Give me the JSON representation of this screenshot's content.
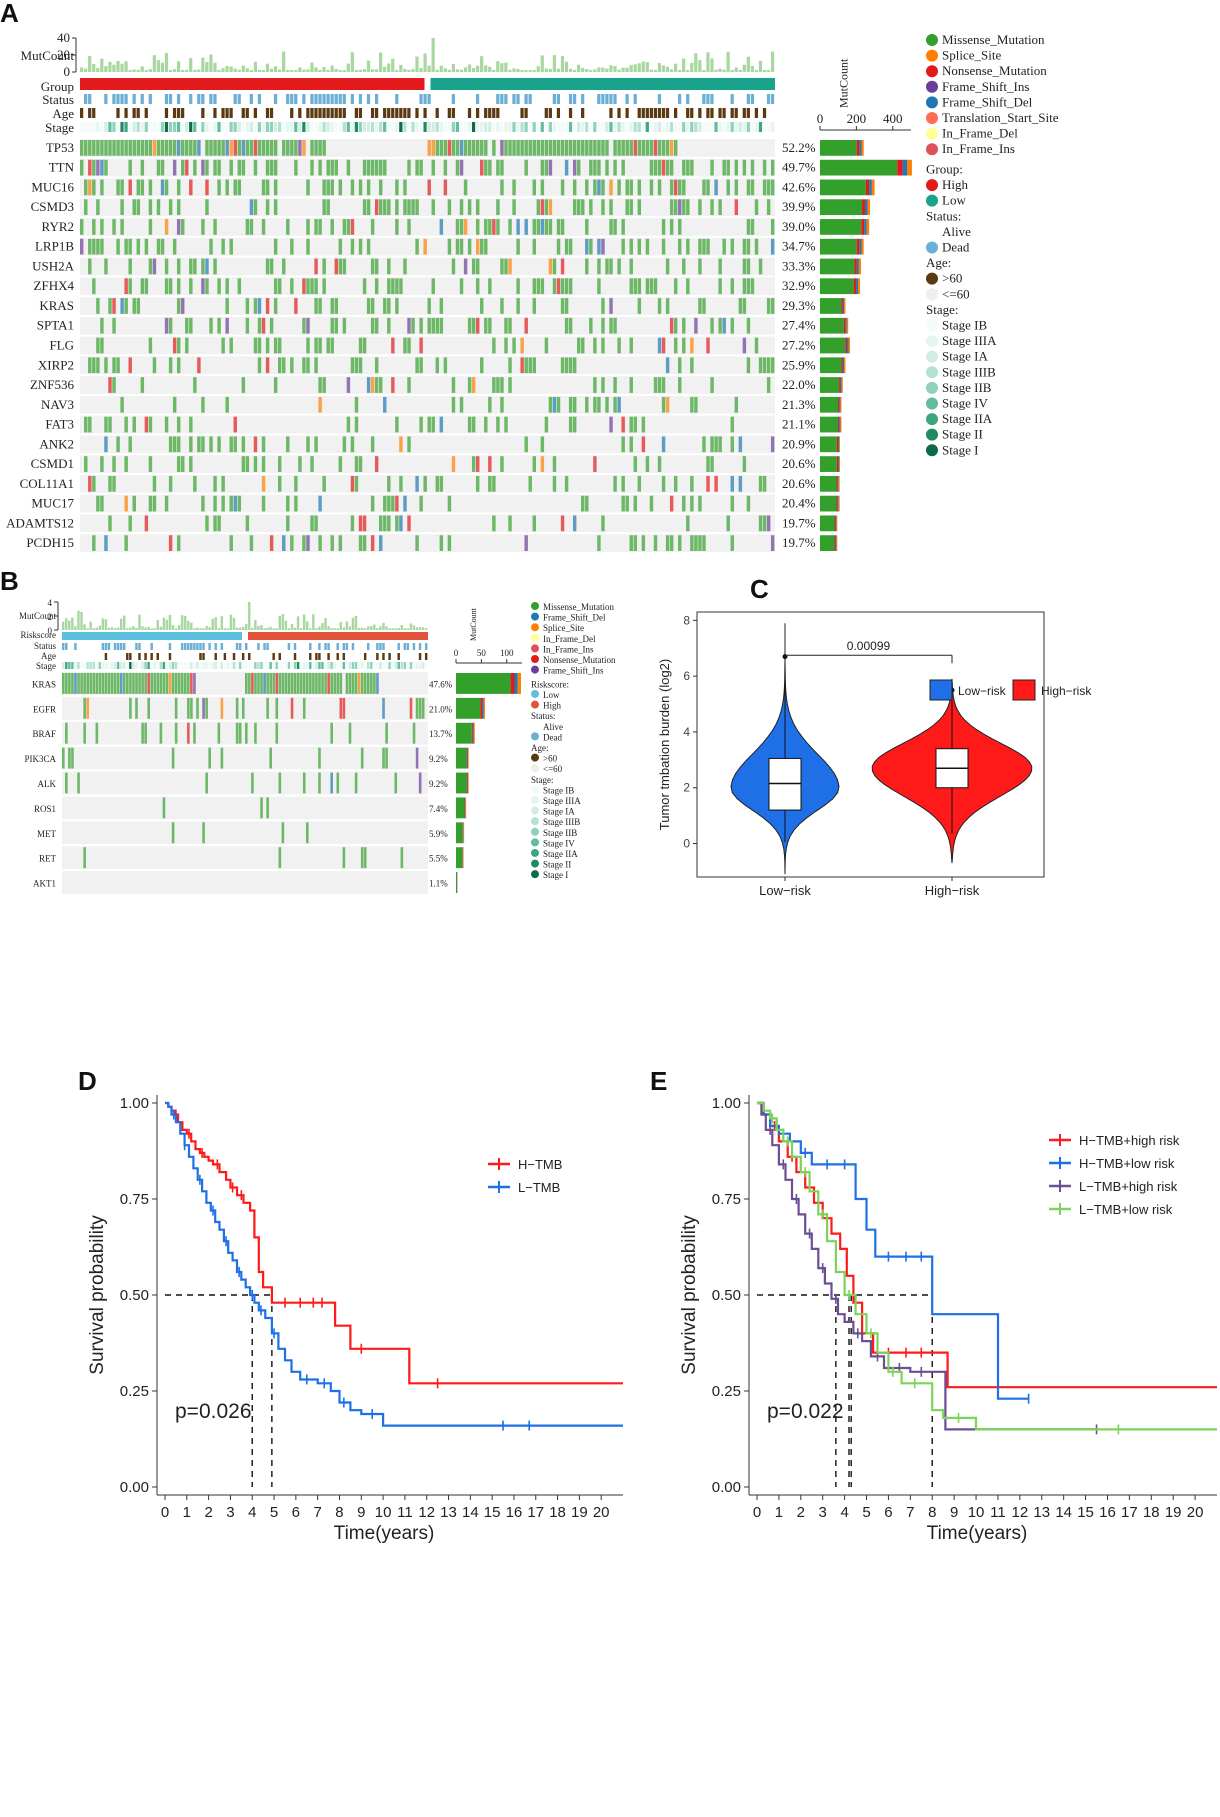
{
  "panel_labels": [
    "A",
    "B",
    "C",
    "D",
    "E"
  ],
  "colors": {
    "Missense_Mutation": "#33a02c",
    "Splice_Site": "#ff7f00",
    "Nonsense_Mutation": "#e31a1c",
    "Frame_Shift_Ins": "#6a3d9a",
    "Frame_Shift_Del": "#1f78b4",
    "Translation_Start_Site": "#ff6f4f",
    "In_Frame_Del": "#ffff99",
    "In_Frame_Ins": "#e0505a",
    "grp_high": "#e31a1c",
    "grp_low": "#1aa38c",
    "status_dead": "#6baed6",
    "age_old": "#5a3a12",
    "riskLow": "#5bc0de",
    "riskHigh": "#e2533b",
    "km_red": "#ff1a1a",
    "km_blue": "#1f6fe6",
    "km_purple": "#6b4e94",
    "km_green": "#7cd35a"
  },
  "chart_data": [
    {
      "panel": "A",
      "type": "table",
      "track_labels": [
        "MutCount",
        "Group",
        "Status",
        "Age",
        "Stage"
      ],
      "mutcount_axis": {
        "label": "MutCount",
        "ticks": [
          "0",
          "20",
          "40"
        ],
        "max": 40
      },
      "side_axis": {
        "label": "MutCount",
        "ticks": [
          "0",
          "200",
          "400"
        ],
        "max": 500
      },
      "genes": [
        "TP53",
        "TTN",
        "MUC16",
        "CSMD3",
        "RYR2",
        "LRP1B",
        "USH2A",
        "ZFHX4",
        "KRAS",
        "SPTA1",
        "FLG",
        "XIRP2",
        "ZNF536",
        "NAV3",
        "FAT3",
        "ANK2",
        "CSMD1",
        "COL11A1",
        "MUC17",
        "ADAMTS12",
        "PCDH15"
      ],
      "percents": [
        "52.2%",
        "49.7%",
        "42.6%",
        "39.9%",
        "39.0%",
        "34.7%",
        "33.3%",
        "32.9%",
        "29.3%",
        "27.4%",
        "27.2%",
        "25.9%",
        "22.0%",
        "21.3%",
        "21.1%",
        "20.9%",
        "20.6%",
        "20.6%",
        "20.4%",
        "19.7%",
        "19.7%"
      ],
      "side_totals": [
        240,
        505,
        300,
        275,
        270,
        240,
        225,
        220,
        140,
        155,
        165,
        140,
        125,
        118,
        118,
        110,
        110,
        108,
        108,
        95,
        95
      ],
      "legend_variants": [
        "Missense_Mutation",
        "Splice_Site",
        "Nonsense_Mutation",
        "Frame_Shift_Ins",
        "Frame_Shift_Del",
        "Translation_Start_Site",
        "In_Frame_Del",
        "In_Frame_Ins"
      ],
      "legend_tracks": [
        {
          "title": "Group:",
          "items": [
            "High",
            "Low"
          ]
        },
        {
          "title": "Status:",
          "items": [
            "Alive",
            "Dead"
          ]
        },
        {
          "title": "Age:",
          "items": [
            ">60",
            "<=60"
          ]
        },
        {
          "title": "Stage:",
          "items": [
            "Stage IB",
            "Stage IIIA",
            "Stage IA",
            "Stage IIIB",
            "Stage IIB",
            "Stage IV",
            "Stage IIA",
            "Stage II",
            "Stage I"
          ]
        }
      ]
    },
    {
      "panel": "B",
      "type": "table",
      "track_labels": [
        "MutCount",
        "Riskscore",
        "Status",
        "Age",
        "Stage"
      ],
      "mutcount_axis": {
        "label": "MutCount",
        "ticks": [
          "0",
          "2",
          "4"
        ],
        "max": 4
      },
      "side_axis": {
        "label": "MutCount",
        "ticks": [
          "0",
          "50",
          "100"
        ],
        "max": 130
      },
      "genes": [
        "KRAS",
        "EGFR",
        "BRAF",
        "PIK3CA",
        "ALK",
        "ROS1",
        "MET",
        "RET",
        "AKT1"
      ],
      "percents": [
        "47.6%",
        "21.0%",
        "13.7%",
        "9.2%",
        "9.2%",
        "7.4%",
        "5.9%",
        "5.5%",
        "1.1%"
      ],
      "side_totals": [
        128,
        57,
        37,
        25,
        25,
        20,
        16,
        15,
        3
      ],
      "legend_variants": [
        "Missense_Mutation",
        "Frame_Shift_Del",
        "Splice_Site",
        "In_Frame_Del",
        "In_Frame_Ins",
        "Nonsense_Mutation",
        "Frame_Shift_Ins"
      ],
      "legend_tracks": [
        {
          "title": "Riskscore:",
          "items": [
            "Low",
            "High"
          ]
        },
        {
          "title": "Status:",
          "items": [
            "Alive",
            "Dead"
          ]
        },
        {
          "title": "Age:",
          "items": [
            ">60",
            "<=60"
          ]
        },
        {
          "title": "Stage:",
          "items": [
            "Stage IB",
            "Stage IIIA",
            "Stage IA",
            "Stage IIIB",
            "Stage IIB",
            "Stage IV",
            "Stage IIA",
            "Stage II",
            "Stage I"
          ]
        }
      ]
    },
    {
      "panel": "C",
      "type": "violin",
      "legend": [
        "Low−risk",
        "High−risk"
      ],
      "categories": [
        "Low−risk",
        "High−risk"
      ],
      "ylabel": "Tumor tmbation burden (log2)",
      "ylim": [
        -1.2,
        8.3
      ],
      "yticks": [
        "0",
        "2",
        "4",
        "6",
        "8"
      ],
      "pvalue": "0.00099",
      "boxes": [
        {
          "min": 0.05,
          "q1": 1.2,
          "median": 2.15,
          "q3": 3.05,
          "max": 6.7,
          "vmin": -1.1,
          "vmax": 7.9,
          "mode": 2.0
        },
        {
          "min": 0.35,
          "q1": 2.0,
          "median": 2.7,
          "q3": 3.4,
          "max": 5.5,
          "vmin": -0.7,
          "vmax": 5.9,
          "mode": 2.7
        }
      ]
    },
    {
      "panel": "D",
      "type": "line",
      "xlabel": "Time(years)",
      "ylabel": "Survival probability",
      "xticks": [
        "0",
        "1",
        "2",
        "3",
        "4",
        "5",
        "6",
        "7",
        "8",
        "9",
        "10",
        "11",
        "12",
        "13",
        "14",
        "15",
        "16",
        "17",
        "18",
        "19",
        "20"
      ],
      "yticks": [
        "0.00",
        "0.25",
        "0.50",
        "0.75",
        "1.00"
      ],
      "xlim": [
        0,
        21
      ],
      "pvalue": "p=0.026",
      "medians": [
        4.0,
        4.9
      ],
      "series": [
        {
          "name": "H−TMB",
          "color": "#ff1a1a",
          "x": [
            0,
            0.15,
            0.3,
            0.45,
            0.6,
            0.8,
            1.0,
            1.2,
            1.4,
            1.6,
            1.8,
            2.0,
            2.2,
            2.5,
            2.8,
            3.0,
            3.3,
            3.6,
            3.9,
            4.1,
            4.3,
            4.5,
            4.9,
            7.8,
            8.5,
            11.2,
            21
          ],
          "y": [
            1.0,
            0.99,
            0.98,
            0.97,
            0.95,
            0.93,
            0.92,
            0.9,
            0.88,
            0.87,
            0.86,
            0.85,
            0.84,
            0.82,
            0.8,
            0.78,
            0.76,
            0.74,
            0.72,
            0.65,
            0.56,
            0.52,
            0.48,
            0.42,
            0.36,
            0.27,
            0.27
          ],
          "censor_x": [
            0.5,
            1.1,
            1.7,
            2.4,
            3.1,
            3.5,
            5.5,
            6.2,
            6.8,
            7.2,
            9.0,
            12.5
          ]
        },
        {
          "name": "L−TMB",
          "color": "#1f6fe6",
          "x": [
            0,
            0.15,
            0.3,
            0.5,
            0.7,
            0.9,
            1.1,
            1.3,
            1.5,
            1.7,
            1.9,
            2.1,
            2.3,
            2.5,
            2.7,
            2.9,
            3.1,
            3.3,
            3.5,
            3.7,
            3.9,
            4.1,
            4.3,
            4.6,
            4.9,
            5.2,
            5.5,
            5.8,
            6.2,
            7.0,
            7.6,
            8.0,
            8.5,
            9.0,
            9.8,
            10.0,
            21
          ],
          "y": [
            1.0,
            0.99,
            0.97,
            0.95,
            0.92,
            0.89,
            0.86,
            0.83,
            0.8,
            0.77,
            0.74,
            0.72,
            0.69,
            0.67,
            0.64,
            0.61,
            0.59,
            0.56,
            0.54,
            0.52,
            0.5,
            0.48,
            0.46,
            0.44,
            0.4,
            0.36,
            0.33,
            0.3,
            0.28,
            0.27,
            0.25,
            0.22,
            0.2,
            0.19,
            0.19,
            0.16,
            0.16
          ],
          "censor_x": [
            0.4,
            0.9,
            1.6,
            2.2,
            2.8,
            3.4,
            4.0,
            4.4,
            5.0,
            6.5,
            7.3,
            8.2,
            9.5,
            15.5,
            16.7
          ]
        }
      ]
    },
    {
      "panel": "E",
      "type": "line",
      "xlabel": "Time(years)",
      "ylabel": "Survival probability",
      "xticks": [
        "0",
        "1",
        "2",
        "3",
        "4",
        "5",
        "6",
        "7",
        "8",
        "9",
        "10",
        "11",
        "12",
        "13",
        "14",
        "15",
        "16",
        "17",
        "18",
        "19",
        "20"
      ],
      "yticks": [
        "0.00",
        "0.25",
        "0.50",
        "0.75",
        "1.00"
      ],
      "xlim": [
        0,
        21
      ],
      "pvalue": "p=0.022",
      "medians": [
        3.6,
        4.2,
        4.3,
        8.0
      ],
      "series": [
        {
          "name": "H−TMB+high risk",
          "color": "#ff1a1a",
          "x": [
            0,
            0.3,
            0.6,
            1.0,
            1.4,
            1.8,
            2.2,
            2.6,
            3.0,
            3.4,
            3.8,
            4.1,
            4.4,
            4.8,
            5.3,
            8.0,
            8.7,
            21
          ],
          "y": [
            1.0,
            0.97,
            0.94,
            0.9,
            0.86,
            0.82,
            0.78,
            0.74,
            0.7,
            0.66,
            0.62,
            0.55,
            0.48,
            0.4,
            0.35,
            0.35,
            0.26,
            0.26
          ],
          "censor_x": [
            0.8,
            1.6,
            2.4,
            3.2,
            6.0,
            6.8,
            7.5
          ]
        },
        {
          "name": "H−TMB+low risk",
          "color": "#1f6fe6",
          "x": [
            0,
            0.3,
            0.6,
            1.0,
            1.5,
            2.0,
            2.5,
            4.5,
            5.0,
            5.4,
            8.0,
            11.0,
            12.4
          ],
          "y": [
            1.0,
            0.97,
            0.94,
            0.92,
            0.9,
            0.87,
            0.84,
            0.75,
            0.67,
            0.6,
            0.45,
            0.23,
            0.23
          ],
          "censor_x": [
            1.2,
            2.2,
            3.2,
            4.0,
            6.0,
            6.8,
            7.5,
            12.4
          ]
        },
        {
          "name": "L−TMB+high risk",
          "color": "#6b4e94",
          "x": [
            0,
            0.2,
            0.4,
            0.7,
            1.0,
            1.3,
            1.6,
            1.9,
            2.2,
            2.5,
            2.8,
            3.1,
            3.4,
            3.7,
            4.0,
            4.4,
            4.8,
            5.2,
            5.8,
            7.0,
            8.0,
            8.6,
            15.5
          ],
          "y": [
            1.0,
            0.97,
            0.93,
            0.89,
            0.84,
            0.8,
            0.75,
            0.71,
            0.66,
            0.62,
            0.57,
            0.53,
            0.49,
            0.45,
            0.43,
            0.4,
            0.38,
            0.34,
            0.31,
            0.3,
            0.3,
            0.15,
            0.15
          ],
          "censor_x": [
            0.6,
            1.2,
            1.8,
            2.4,
            3.0,
            3.6,
            4.6,
            5.5,
            6.5,
            7.5,
            15.5
          ]
        },
        {
          "name": "L−TMB+low risk",
          "color": "#7cd35a",
          "x": [
            0,
            0.3,
            0.6,
            0.9,
            1.2,
            1.6,
            2.0,
            2.4,
            2.8,
            3.2,
            3.6,
            4.0,
            4.5,
            5.0,
            5.5,
            6.0,
            6.6,
            8.0,
            8.5,
            10.0,
            21
          ],
          "y": [
            1.0,
            0.98,
            0.96,
            0.93,
            0.9,
            0.86,
            0.82,
            0.77,
            0.71,
            0.64,
            0.56,
            0.5,
            0.45,
            0.4,
            0.35,
            0.3,
            0.27,
            0.2,
            0.18,
            0.15,
            0.15
          ],
          "censor_x": [
            0.7,
            1.4,
            2.2,
            3.0,
            4.2,
            5.2,
            6.2,
            7.2,
            9.2,
            16.5
          ]
        }
      ]
    }
  ]
}
